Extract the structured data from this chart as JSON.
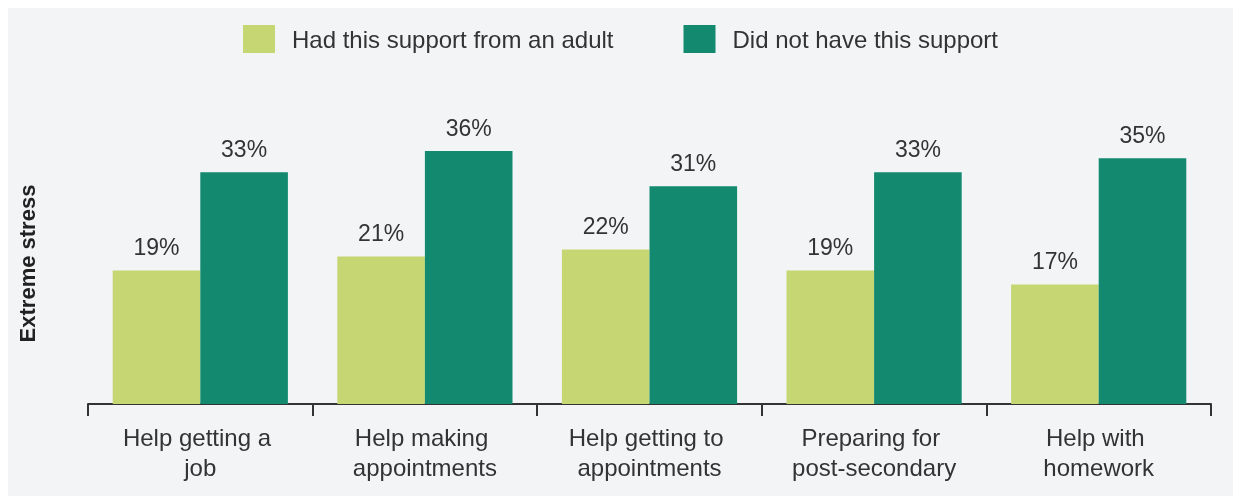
{
  "chart_data": {
    "type": "bar",
    "ylabel": "Extreme stress",
    "categories": [
      "Help getting a job",
      "Help making appointments",
      "Help getting to appointments",
      "Preparing for post-secondary",
      "Help with homework"
    ],
    "series": [
      {
        "name": "Had this support from an adult",
        "color": "#c5d672",
        "values": [
          19,
          21,
          22,
          19,
          17
        ],
        "value_labels": [
          "19%",
          "21%",
          "22%",
          "19%",
          "17%"
        ]
      },
      {
        "name": "Did not have this support",
        "color": "#138a70",
        "values": [
          33,
          36,
          31,
          33,
          35
        ],
        "value_labels": [
          "33%",
          "36%",
          "31%",
          "33%",
          "35%"
        ]
      }
    ],
    "legend": "top",
    "grid": false
  }
}
